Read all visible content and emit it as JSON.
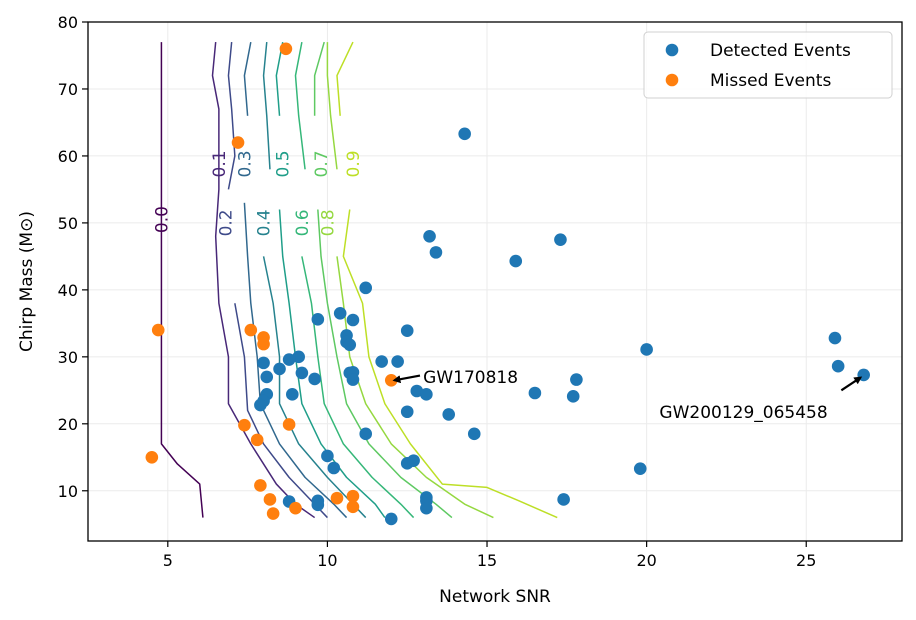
{
  "chart_data": {
    "type": "scatter",
    "xlabel": "Network SNR",
    "ylabel": "Chirp Mass (M⊙)",
    "xlim": [
      2.5,
      28
    ],
    "ylim": [
      2.5,
      80
    ],
    "xticks": [
      5,
      10,
      15,
      20,
      25
    ],
    "yticks": [
      10,
      20,
      30,
      40,
      50,
      60,
      70,
      80
    ],
    "grid": true,
    "legend_position": "top-right",
    "series": [
      {
        "name": "Detected Events",
        "color": "#1f77b4",
        "points": [
          [
            14.3,
            63.3
          ],
          [
            13.2,
            48.0
          ],
          [
            13.4,
            45.6
          ],
          [
            17.3,
            47.5
          ],
          [
            15.9,
            44.3
          ],
          [
            11.2,
            40.3
          ],
          [
            10.4,
            36.5
          ],
          [
            10.8,
            35.5
          ],
          [
            9.7,
            35.6
          ],
          [
            12.5,
            33.9
          ],
          [
            10.6,
            33.2
          ],
          [
            10.6,
            32.2
          ],
          [
            10.7,
            31.8
          ],
          [
            25.9,
            32.8
          ],
          [
            20.0,
            31.1
          ],
          [
            9.1,
            30.0
          ],
          [
            8.8,
            29.6
          ],
          [
            8.0,
            29.1
          ],
          [
            11.7,
            29.3
          ],
          [
            12.2,
            29.3
          ],
          [
            8.5,
            28.2
          ],
          [
            9.2,
            27.6
          ],
          [
            9.6,
            26.7
          ],
          [
            10.7,
            27.6
          ],
          [
            10.8,
            27.7
          ],
          [
            10.8,
            26.6
          ],
          [
            8.1,
            27.0
          ],
          [
            26.0,
            28.6
          ],
          [
            26.8,
            27.3
          ],
          [
            17.8,
            26.6
          ],
          [
            12.8,
            24.9
          ],
          [
            13.1,
            24.4
          ],
          [
            16.5,
            24.6
          ],
          [
            17.7,
            24.1
          ],
          [
            8.9,
            24.4
          ],
          [
            8.1,
            24.4
          ],
          [
            8.0,
            23.4
          ],
          [
            7.9,
            22.8
          ],
          [
            12.5,
            21.8
          ],
          [
            13.8,
            21.4
          ],
          [
            11.2,
            18.5
          ],
          [
            14.6,
            18.5
          ],
          [
            10.0,
            15.2
          ],
          [
            12.5,
            14.1
          ],
          [
            12.7,
            14.5
          ],
          [
            10.2,
            13.4
          ],
          [
            19.8,
            13.3
          ],
          [
            13.1,
            9.0
          ],
          [
            13.1,
            8.5
          ],
          [
            17.4,
            8.7
          ],
          [
            9.7,
            8.5
          ],
          [
            9.7,
            7.9
          ],
          [
            13.1,
            7.4
          ],
          [
            8.8,
            8.4
          ],
          [
            12.0,
            5.8
          ]
        ]
      },
      {
        "name": "Missed Events",
        "color": "#ff7f0e",
        "points": [
          [
            8.7,
            76.0
          ],
          [
            7.2,
            62.0
          ],
          [
            4.7,
            34.0
          ],
          [
            7.6,
            34.0
          ],
          [
            8.0,
            32.9
          ],
          [
            8.0,
            31.9
          ],
          [
            12.0,
            26.5
          ],
          [
            4.5,
            15.0
          ],
          [
            7.4,
            19.8
          ],
          [
            7.8,
            17.6
          ],
          [
            8.8,
            19.9
          ],
          [
            7.9,
            10.8
          ],
          [
            8.2,
            8.7
          ],
          [
            8.3,
            6.6
          ],
          [
            9.0,
            7.4
          ],
          [
            10.3,
            8.9
          ],
          [
            10.8,
            9.2
          ],
          [
            10.8,
            7.6
          ]
        ]
      }
    ],
    "contours": [
      {
        "level": "0.0",
        "color": "#440154",
        "points": [
          [
            4.8,
            77
          ],
          [
            4.8,
            60
          ],
          [
            4.8,
            45
          ],
          [
            4.8,
            30
          ],
          [
            4.8,
            17
          ],
          [
            5.3,
            14
          ],
          [
            6.0,
            11
          ],
          [
            6.1,
            6
          ]
        ],
        "label_at": [
          4.8,
          50.5
        ]
      },
      {
        "level": "0.1",
        "color": "#482878",
        "points": [
          [
            6.5,
            77
          ],
          [
            6.4,
            72
          ],
          [
            6.6,
            67
          ],
          [
            6.6,
            62
          ],
          [
            6.6,
            55
          ],
          [
            6.5,
            48
          ],
          [
            6.6,
            38
          ],
          [
            6.9,
            30
          ],
          [
            6.9,
            23
          ],
          [
            7.6,
            17
          ],
          [
            8.4,
            11
          ],
          [
            9.0,
            8
          ],
          [
            9.6,
            6
          ]
        ],
        "label_at": [
          6.6,
          58.8
        ]
      },
      {
        "level": "0.2",
        "color": "#3e4a89",
        "points": [
          [
            7.0,
            77
          ],
          [
            6.9,
            72
          ],
          [
            7.0,
            67
          ],
          [
            7.1,
            60
          ],
          [
            6.9,
            55
          ],
          [
            6.8,
            47
          ],
          [
            7.1,
            38
          ],
          [
            7.4,
            30
          ],
          [
            7.5,
            22
          ],
          [
            8.0,
            17
          ],
          [
            8.8,
            12
          ],
          [
            9.6,
            8
          ],
          [
            10.0,
            6
          ]
        ],
        "label_at": [
          6.8,
          50.0
        ]
      },
      {
        "level": "0.3",
        "color": "#31688e",
        "points": [
          [
            7.6,
            77
          ],
          [
            7.4,
            72
          ],
          [
            7.5,
            66
          ],
          [
            7.6,
            58
          ],
          [
            7.4,
            53
          ],
          [
            7.5,
            45
          ],
          [
            7.6,
            38
          ],
          [
            7.8,
            30
          ],
          [
            7.9,
            23
          ],
          [
            8.5,
            17
          ],
          [
            9.3,
            12
          ],
          [
            10.2,
            8
          ],
          [
            10.6,
            6
          ]
        ],
        "label_at": [
          7.4,
          58.8
        ]
      },
      {
        "level": "0.4",
        "color": "#26828e",
        "points": [
          [
            8.1,
            77
          ],
          [
            8.0,
            72
          ],
          [
            8.1,
            66
          ],
          [
            8.2,
            58
          ],
          [
            8.0,
            52
          ],
          [
            8.0,
            45
          ],
          [
            8.3,
            38
          ],
          [
            8.5,
            30
          ],
          [
            8.5,
            23
          ],
          [
            9.1,
            17
          ],
          [
            10.0,
            12
          ],
          [
            10.8,
            8
          ],
          [
            11.2,
            6
          ]
        ],
        "label_at": [
          8.0,
          50.0
        ]
      },
      {
        "level": "0.5",
        "color": "#1f9e89",
        "points": [
          [
            8.6,
            77
          ],
          [
            8.4,
            72
          ],
          [
            8.5,
            66
          ],
          [
            8.7,
            58
          ],
          [
            8.5,
            52
          ],
          [
            8.6,
            45
          ],
          [
            8.8,
            38
          ],
          [
            9.0,
            30
          ],
          [
            9.2,
            23
          ],
          [
            9.8,
            17
          ],
          [
            10.6,
            12
          ],
          [
            11.5,
            8
          ],
          [
            11.8,
            6
          ]
        ],
        "label_at": [
          8.6,
          58.8
        ]
      },
      {
        "level": "0.6",
        "color": "#35b779",
        "points": [
          [
            9.2,
            77
          ],
          [
            9.0,
            72
          ],
          [
            9.1,
            66
          ],
          [
            9.3,
            58
          ],
          [
            9.1,
            52
          ],
          [
            9.2,
            45
          ],
          [
            9.5,
            38
          ],
          [
            9.7,
            30
          ],
          [
            9.9,
            23
          ],
          [
            10.5,
            17
          ],
          [
            11.4,
            12
          ],
          [
            12.3,
            8
          ],
          [
            12.7,
            6
          ]
        ],
        "label_at": [
          9.2,
          50.0
        ]
      },
      {
        "level": "0.7",
        "color": "#5ec962",
        "points": [
          [
            9.9,
            77
          ],
          [
            9.6,
            72
          ],
          [
            9.6,
            66
          ],
          [
            9.8,
            58
          ],
          [
            9.7,
            52
          ],
          [
            9.8,
            45
          ],
          [
            10.0,
            38
          ],
          [
            10.3,
            30
          ],
          [
            10.6,
            23
          ],
          [
            11.3,
            17
          ],
          [
            12.3,
            12
          ],
          [
            13.4,
            8
          ],
          [
            13.9,
            6
          ]
        ],
        "label_at": [
          9.8,
          58.8
        ]
      },
      {
        "level": "0.8",
        "color": "#95d840",
        "points": [
          [
            10.0,
            77
          ],
          [
            10.0,
            72
          ],
          [
            10.1,
            66
          ],
          [
            10.3,
            58
          ],
          [
            10.0,
            52
          ],
          [
            10.3,
            45
          ],
          [
            10.5,
            38
          ],
          [
            10.7,
            30
          ],
          [
            11.2,
            23
          ],
          [
            12.0,
            17
          ],
          [
            13.1,
            12
          ],
          [
            14.3,
            8
          ],
          [
            15.2,
            6
          ]
        ],
        "label_at": [
          10.0,
          50.0
        ]
      },
      {
        "level": "0.9",
        "color": "#bddf26",
        "points": [
          [
            10.8,
            77
          ],
          [
            10.3,
            72
          ],
          [
            10.4,
            66
          ],
          [
            10.8,
            60
          ],
          [
            10.7,
            56
          ],
          [
            10.7,
            52
          ],
          [
            10.5,
            45
          ],
          [
            11.1,
            38
          ],
          [
            11.3,
            30
          ],
          [
            11.8,
            23
          ],
          [
            12.6,
            17
          ],
          [
            13.6,
            11
          ],
          [
            15.0,
            10.5
          ],
          [
            16.0,
            8.5
          ],
          [
            17.2,
            6
          ]
        ],
        "label_at": [
          10.8,
          58.8
        ]
      }
    ],
    "annotations": [
      {
        "text": "GW170818",
        "text_at": [
          13.0,
          27.0
        ],
        "arrow_from": [
          12.9,
          27.2
        ],
        "arrow_to": [
          12.1,
          26.5
        ],
        "anchor": "start"
      },
      {
        "text": "GW200129_065458",
        "text_at": [
          20.4,
          21.8
        ],
        "arrow_from": [
          26.1,
          25.0
        ],
        "arrow_to": [
          26.7,
          26.9
        ],
        "anchor": "start"
      }
    ]
  }
}
